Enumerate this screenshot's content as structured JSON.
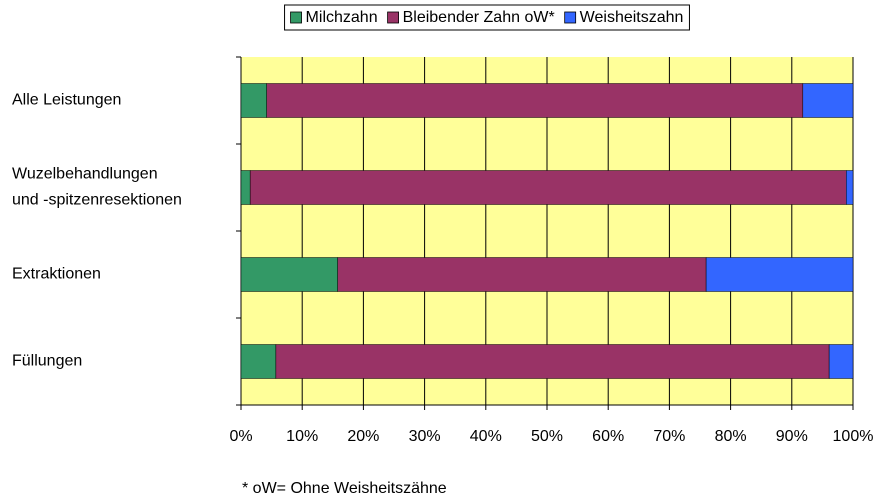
{
  "chart_data": {
    "type": "stacked-barh",
    "categories": [
      "Alle Leistungen",
      [
        "Wuzelbehandlungen",
        "und -spitzenresektionen"
      ],
      "Extraktionen",
      "Füllungen"
    ],
    "series": [
      {
        "name": "Milchzahn",
        "color": "#339966",
        "values": [
          4.2,
          1.5,
          15.8,
          5.7
        ]
      },
      {
        "name": "Bleibender Zahn oW*",
        "color": "#993366",
        "values": [
          87.6,
          97.4,
          60.2,
          90.4
        ]
      },
      {
        "name": "Weisheitszahn",
        "color": "#3366ff",
        "values": [
          8.2,
          1.1,
          24.0,
          3.9
        ]
      }
    ],
    "xlim": [
      0,
      100
    ],
    "xticks": [
      {
        "value": 0,
        "label": "0%"
      },
      {
        "value": 10,
        "label": "10%"
      },
      {
        "value": 20,
        "label": "20%"
      },
      {
        "value": 30,
        "label": "30%"
      },
      {
        "value": 40,
        "label": "40%"
      },
      {
        "value": 50,
        "label": "50%"
      },
      {
        "value": 60,
        "label": "60%"
      },
      {
        "value": 70,
        "label": "70%"
      },
      {
        "value": 80,
        "label": "80%"
      },
      {
        "value": 90,
        "label": "90%"
      },
      {
        "value": 100,
        "label": "100%"
      }
    ],
    "grid": true,
    "legend": "top",
    "plot_background": "#ffff99",
    "note": "* oW= Ohne Weisheitszähne"
  }
}
